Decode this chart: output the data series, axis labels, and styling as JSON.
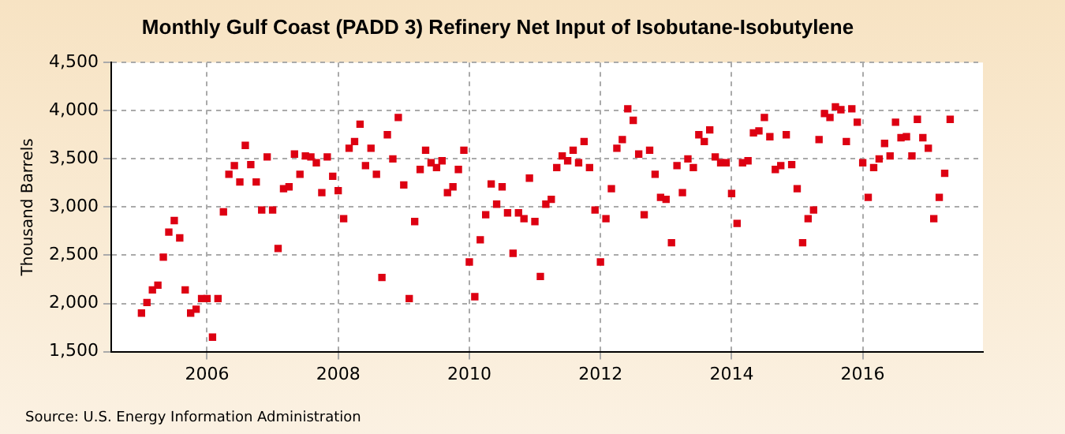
{
  "chart_data": {
    "type": "scatter",
    "title": "Monthly Gulf Coast (PADD 3) Refinery Net Input of Isobutane-Isobutylene",
    "ylabel": "Thousand Barrels",
    "annotations": [
      "Source: U.S. Energy Information Administration"
    ],
    "x": [
      "2005-01",
      "2005-02",
      "2005-03",
      "2005-04",
      "2005-05",
      "2005-06",
      "2005-07",
      "2005-08",
      "2005-09",
      "2005-10",
      "2005-11",
      "2005-12",
      "2006-01",
      "2006-02",
      "2006-03",
      "2006-04",
      "2006-05",
      "2006-06",
      "2006-07",
      "2006-08",
      "2006-09",
      "2006-10",
      "2006-11",
      "2006-12",
      "2007-01",
      "2007-02",
      "2007-03",
      "2007-04",
      "2007-05",
      "2007-06",
      "2007-07",
      "2007-08",
      "2007-09",
      "2007-10",
      "2007-11",
      "2007-12",
      "2008-01",
      "2008-02",
      "2008-03",
      "2008-04",
      "2008-05",
      "2008-06",
      "2008-07",
      "2008-08",
      "2008-09",
      "2008-10",
      "2008-11",
      "2008-12",
      "2009-01",
      "2009-02",
      "2009-03",
      "2009-04",
      "2009-05",
      "2009-06",
      "2009-07",
      "2009-08",
      "2009-09",
      "2009-10",
      "2009-11",
      "2009-12",
      "2010-01",
      "2010-02",
      "2010-03",
      "2010-04",
      "2010-05",
      "2010-06",
      "2010-07",
      "2010-08",
      "2010-09",
      "2010-10",
      "2010-11",
      "2010-12",
      "2011-01",
      "2011-02",
      "2011-03",
      "2011-04",
      "2011-05",
      "2011-06",
      "2011-07",
      "2011-08",
      "2011-09",
      "2011-10",
      "2011-11",
      "2011-12",
      "2012-01",
      "2012-02",
      "2012-03",
      "2012-04",
      "2012-05",
      "2012-06",
      "2012-07",
      "2012-08",
      "2012-09",
      "2012-10",
      "2012-11",
      "2012-12",
      "2013-01",
      "2013-02",
      "2013-03",
      "2013-04",
      "2013-05",
      "2013-06",
      "2013-07",
      "2013-08",
      "2013-09",
      "2013-10",
      "2013-11",
      "2013-12",
      "2014-01",
      "2014-02",
      "2014-03",
      "2014-04",
      "2014-05",
      "2014-06",
      "2014-07",
      "2014-08",
      "2014-09",
      "2014-10",
      "2014-11",
      "2014-12",
      "2015-01",
      "2015-02",
      "2015-03",
      "2015-04",
      "2015-05",
      "2015-06",
      "2015-07",
      "2015-08",
      "2015-09",
      "2015-10",
      "2015-11",
      "2015-12",
      "2016-01",
      "2016-02",
      "2016-03",
      "2016-04",
      "2016-05",
      "2016-06",
      "2016-07",
      "2016-08",
      "2016-09",
      "2016-10",
      "2016-11",
      "2016-12",
      "2017-01",
      "2017-02",
      "2017-03",
      "2017-04",
      "2017-05"
    ],
    "series": [
      {
        "color": "#dd0012",
        "values": [
          1900,
          2010,
          2140,
          2190,
          2480,
          2740,
          2860,
          2680,
          2140,
          1900,
          1940,
          2050,
          2050,
          1650,
          2050,
          2950,
          3340,
          3430,
          3260,
          3640,
          3440,
          3260,
          2970,
          3520,
          2970,
          2570,
          3190,
          3210,
          3550,
          3340,
          3530,
          3520,
          3460,
          3150,
          3520,
          3320,
          3170,
          2880,
          3610,
          3680,
          3860,
          3430,
          3610,
          3340,
          2270,
          3750,
          3500,
          3930,
          3230,
          2050,
          2850,
          3390,
          3590,
          3460,
          3410,
          3480,
          3150,
          3210,
          3390,
          3590,
          2430,
          2070,
          2660,
          2920,
          3240,
          3030,
          3210,
          2940,
          2520,
          2940,
          2880,
          3300,
          2850,
          2280,
          3030,
          3080,
          3410,
          3530,
          3480,
          3590,
          3460,
          3680,
          3410,
          2970,
          2430,
          2880,
          3190,
          3610,
          3700,
          4020,
          3900,
          3550,
          2920,
          3590,
          3340,
          3100,
          3080,
          2630,
          3430,
          3150,
          3500,
          3410,
          3750,
          3680,
          3800,
          3520,
          3460,
          3460,
          3140,
          2830,
          3460,
          3480,
          3770,
          3790,
          3930,
          3730,
          3390,
          3430,
          3750,
          3440,
          3190,
          2630,
          2880,
          2970,
          3700,
          3970,
          3930,
          4040,
          4010,
          3680,
          4020,
          3880,
          3460,
          3100,
          3410,
          3500,
          3660,
          3530,
          3880,
          3720,
          3730,
          3530,
          3910,
          3720,
          3610,
          2880,
          3100,
          3350,
          3910
        ]
      }
    ],
    "xlim": [
      "2004-07-15",
      "2017-11-01"
    ],
    "xticks": [
      "2006",
      "2008",
      "2010",
      "2012",
      "2014",
      "2016"
    ],
    "ylim": [
      1500,
      4500
    ],
    "yticks": [
      {
        "value": 1500,
        "label": "1,500"
      },
      {
        "value": 2000,
        "label": "2,000"
      },
      {
        "value": 2500,
        "label": "2,500"
      },
      {
        "value": 3000,
        "label": "3,000"
      },
      {
        "value": 3500,
        "label": "3,500"
      },
      {
        "value": 4000,
        "label": "4,000"
      },
      {
        "value": 4500,
        "label": "4,500"
      }
    ],
    "grid": true,
    "legend": false,
    "marker": "square"
  }
}
